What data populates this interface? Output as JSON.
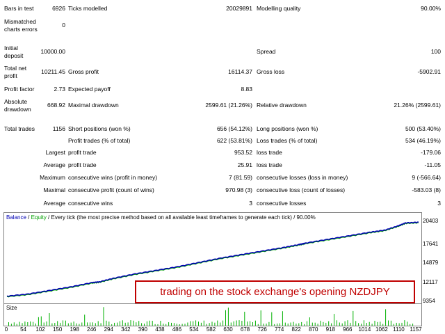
{
  "report": {
    "bars_in_test_label": "Bars in test",
    "bars_in_test_value": "6926",
    "ticks_modelled_label": "Ticks modelled",
    "ticks_modelled_value": "20029891",
    "modelling_quality_label": "Modelling quality",
    "modelling_quality_value": "90.00%",
    "mismatched_label_1": "Mismatched",
    "mismatched_label_2": "charts errors",
    "mismatched_value": "0",
    "initial_deposit_label_1": "Initial",
    "initial_deposit_label_2": "deposit",
    "initial_deposit_value": "10000.00",
    "spread_label": "Spread",
    "spread_value": "100",
    "total_net_label_1": "Total net",
    "total_net_label_2": "profit",
    "total_net_value": "10211.45",
    "gross_profit_label": "Gross profit",
    "gross_profit_value": "16114.37",
    "gross_loss_label": "Gross loss",
    "gross_loss_value": "-5902.91",
    "profit_factor_label": "Profit factor",
    "profit_factor_value": "2.73",
    "expected_payoff_label": "Expected payoff",
    "expected_payoff_value": "8.83",
    "absolute_dd_label_1": "Absolute",
    "absolute_dd_label_2": "drawdown",
    "absolute_dd_value": "668.92",
    "maximal_dd_label": "Maximal drawdown",
    "maximal_dd_value": "2599.61 (21.26%)",
    "relative_dd_label": "Relative drawdown",
    "relative_dd_value": "21.26% (2599.61)",
    "total_trades_label": "Total trades",
    "total_trades_value": "1156",
    "short_label": "Short positions (won %)",
    "short_value": "656 (54.12%)",
    "long_label": "Long positions (won %)",
    "long_value": "500 (53.40%)",
    "profit_trades_label": "Profit trades (% of total)",
    "profit_trades_value": "622 (53.81%)",
    "loss_trades_label": "Loss trades (% of total)",
    "loss_trades_value": "534 (46.19%)",
    "largest_label": "Largest",
    "largest_profit_label": "profit trade",
    "largest_profit_value": "953.52",
    "largest_loss_label": "loss trade",
    "largest_loss_value": "-179.06",
    "average_label": "Average",
    "average_profit_label": "profit trade",
    "average_profit_value": "25.91",
    "average_loss_label": "loss trade",
    "average_loss_value": "-11.05",
    "maximum_label": "Maximum",
    "max_cons_wins_label": "consecutive wins (profit in money)",
    "max_cons_wins_value": "7 (81.59)",
    "max_cons_losses_label": "consecutive losses (loss in money)",
    "max_cons_losses_value": "9 (-566.64)",
    "maximal_label": "Maximal",
    "maximal_cons_profit_label": "consecutive profit (count of wins)",
    "maximal_cons_profit_value": "970.98 (3)",
    "maximal_cons_loss_label": "consecutive loss (count of losses)",
    "maximal_cons_loss_value": "-583.03 (8)",
    "avg_label": "Average",
    "avg_cons_wins_label": "consecutive wins",
    "avg_cons_wins_value": "3",
    "avg_cons_losses_label": "consecutive losses",
    "avg_cons_losses_value": "3"
  },
  "chart": {
    "legend_balance": "Balance",
    "legend_sep1": " / ",
    "legend_equity": "Equity",
    "legend_rest": " / Every tick (the most precise method based on all available least timeframes to generate each tick) / 90.00%",
    "size_label": "Size",
    "callout": "trading on the stock exchange's opening NZDJPY",
    "colors": {
      "balance": "#0000b4",
      "equity": "#00a000",
      "size_bars": "#00b000",
      "callout": "#c00000"
    }
  },
  "chart_data": {
    "type": "line",
    "title": "",
    "xlabel": "",
    "ylabel": "",
    "y_ticks": [
      "20403",
      "17641",
      "14879",
      "12117",
      "9354"
    ],
    "x_ticks": [
      "0",
      "54",
      "102",
      "150",
      "198",
      "246",
      "294",
      "342",
      "390",
      "438",
      "486",
      "534",
      "582",
      "630",
      "678",
      "726",
      "774",
      "822",
      "870",
      "918",
      "966",
      "1014",
      "1062",
      "1110",
      "1157"
    ],
    "series": [
      {
        "name": "Balance",
        "x": [
          0,
          60,
          120,
          180,
          240,
          260,
          300,
          360,
          420,
          480,
          540,
          600,
          660,
          720,
          780,
          822,
          840,
          900,
          960,
          1020,
          1062,
          1100,
          1120,
          1157
        ],
        "values": [
          10000,
          10300,
          10800,
          11300,
          11900,
          12000,
          12500,
          13100,
          13600,
          14100,
          14700,
          15300,
          15800,
          16300,
          16800,
          17200,
          17400,
          17900,
          18400,
          18900,
          19200,
          19800,
          20200,
          20300
        ]
      }
    ]
  }
}
